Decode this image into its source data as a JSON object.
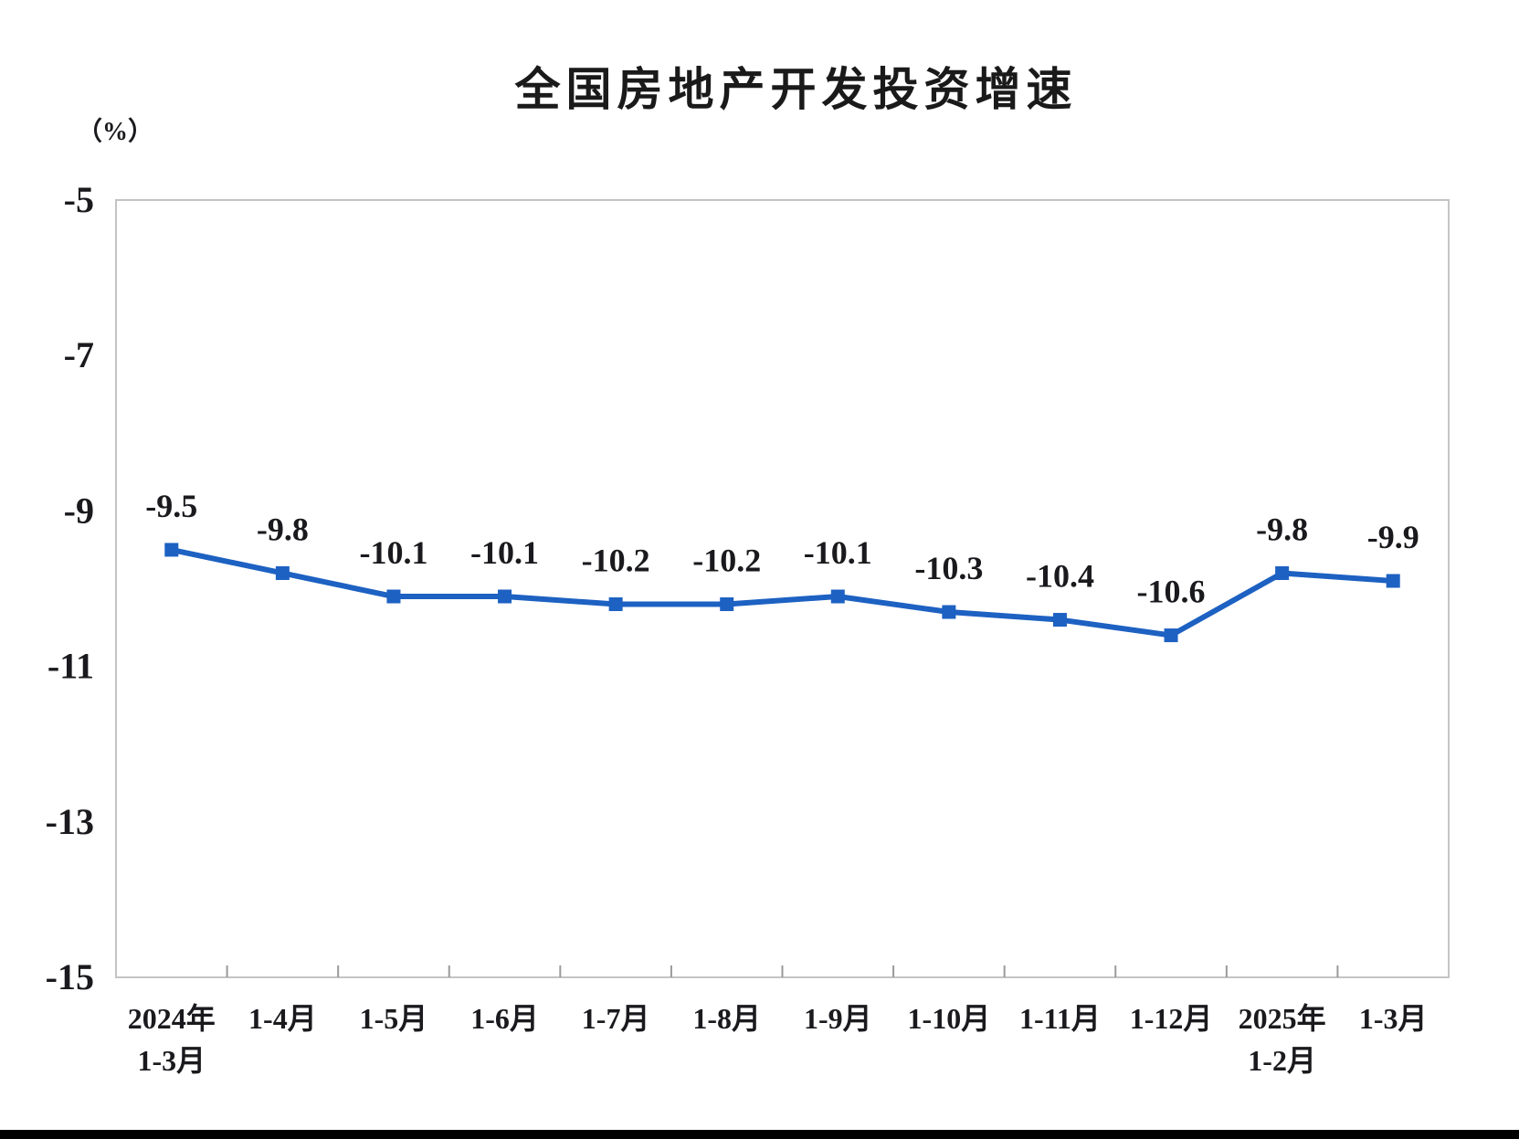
{
  "page": {
    "background": "#ffffff",
    "bottom_bar_color": "#000000"
  },
  "chart": {
    "title": "全国房地产开发投资增速",
    "unit_label": "（%）"
  },
  "chart_data": {
    "type": "line",
    "title": "全国房地产开发投资增速",
    "ylabel": "（%）",
    "categories": [
      "2024年\n1-3月",
      "1-4月",
      "1-5月",
      "1-6月",
      "1-7月",
      "1-8月",
      "1-9月",
      "1-10月",
      "1-11月",
      "1-12月",
      "2025年\n1-2月",
      "1-3月"
    ],
    "values": [
      -9.5,
      -9.8,
      -10.1,
      -10.1,
      -10.2,
      -10.2,
      -10.1,
      -10.3,
      -10.4,
      -10.6,
      -9.8,
      -9.9
    ],
    "data_labels": [
      "-9.5",
      "-9.8",
      "-10.1",
      "-10.1",
      "-10.2",
      "-10.2",
      "-10.1",
      "-10.3",
      "-10.4",
      "-10.6",
      "-9.8",
      "-9.9"
    ],
    "ylim": [
      -15,
      -5
    ],
    "yticks": [
      -5,
      -7,
      -9,
      -11,
      -13,
      -15
    ],
    "grid": false,
    "legend_position": "none",
    "line_color": "#1d61c2",
    "marker": "square",
    "axis_color": "#c4c4c4",
    "tick_color": "#9a9a9a",
    "text_color": "#1a1a1e"
  }
}
